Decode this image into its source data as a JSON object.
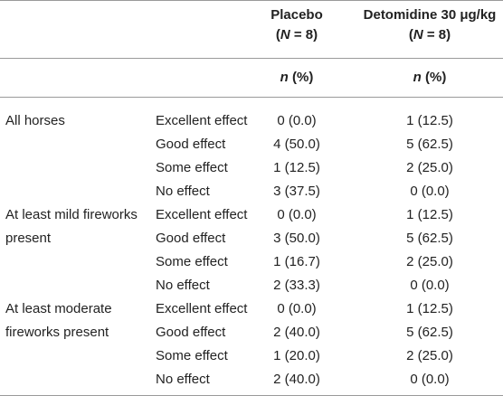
{
  "header": {
    "placebo_title": "Placebo",
    "placebo_n": "(N = 8)",
    "det_title": "Detomidine 30 μg/kg",
    "det_n": "(N = 8)",
    "col_unit_1": "n (%)",
    "col_unit_2": "n (%)"
  },
  "groups": [
    {
      "label_line1": "All horses",
      "label_line2": "",
      "rows": [
        {
          "condition": "Excellent effect",
          "placebo": "0 (0.0)",
          "detomidine": "1 (12.5)"
        },
        {
          "condition": "Good effect",
          "placebo": "4 (50.0)",
          "detomidine": "5 (62.5)"
        },
        {
          "condition": "Some effect",
          "placebo": "1 (12.5)",
          "detomidine": "2 (25.0)"
        },
        {
          "condition": "No effect",
          "placebo": "3 (37.5)",
          "detomidine": "0 (0.0)"
        }
      ]
    },
    {
      "label_line1": "At least mild fireworks",
      "label_line2": "present",
      "rows": [
        {
          "condition": "Excellent effect",
          "placebo": "0 (0.0)",
          "detomidine": "1 (12.5)"
        },
        {
          "condition": "Good effect",
          "placebo": "3 (50.0)",
          "detomidine": "5 (62.5)"
        },
        {
          "condition": "Some effect",
          "placebo": "1 (16.7)",
          "detomidine": "2 (25.0)"
        },
        {
          "condition": "No effect",
          "placebo": "2 (33.3)",
          "detomidine": "0 (0.0)"
        }
      ]
    },
    {
      "label_line1": "At least moderate",
      "label_line2": "fireworks present",
      "rows": [
        {
          "condition": "Excellent effect",
          "placebo": "0 (0.0)",
          "detomidine": "1 (12.5)"
        },
        {
          "condition": "Good effect",
          "placebo": "2 (40.0)",
          "detomidine": "5 (62.5)"
        },
        {
          "condition": "Some effect",
          "placebo": "1 (20.0)",
          "detomidine": "2 (25.0)"
        },
        {
          "condition": "No effect",
          "placebo": "2 (40.0)",
          "detomidine": "0 (0.0)"
        }
      ]
    }
  ]
}
